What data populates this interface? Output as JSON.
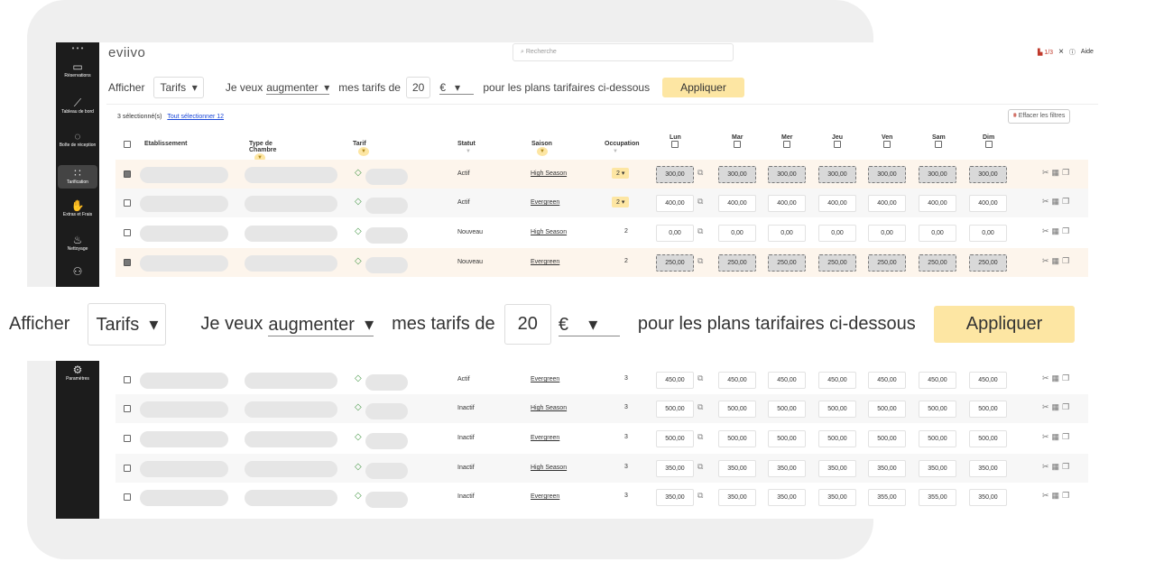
{
  "app": {
    "logo": "eviivo",
    "search_placeholder": "Recherche",
    "property_count": "1/3",
    "close": "×",
    "help": "Aide"
  },
  "colors": {
    "accent": "#fde6a3",
    "sidebar": "#1c1c1c",
    "selected_row": "#fdf5ec",
    "link": "#1a47d8"
  },
  "sidebar": {
    "items": [
      {
        "icon": "bed-icon",
        "label": "Réservations"
      },
      {
        "icon": "chart-icon",
        "label": "Tableau de bord"
      },
      {
        "icon": "chat-icon",
        "label": "Boîte de réception"
      },
      {
        "icon": "calculator-icon",
        "label": "Tarification",
        "active": true
      },
      {
        "icon": "hand-coins-icon",
        "label": "Extras et Frais"
      },
      {
        "icon": "cleaning-icon",
        "label": "Nettoyage"
      },
      {
        "icon": "users-icon",
        "label": ""
      },
      {
        "icon": "gear-icon",
        "label": "Paramètres"
      }
    ]
  },
  "toolbar": {
    "show_label": "Afficher",
    "show_value": "Tarifs",
    "want_label": "Je veux",
    "action_value": "augmenter",
    "rates_label": "mes tarifs de",
    "amount": "20",
    "unit": "€",
    "suffix": "pour les plans tarifaires ci-dessous",
    "apply": "Appliquer"
  },
  "selection": {
    "count": "3 sélectionné(s)",
    "select_all": "Tout sélectionner 12",
    "clear_filters": "Effacer les filtres"
  },
  "columns": {
    "establishment": "Etablissement",
    "room_type": "Type de Chambre",
    "rate": "Tarif",
    "status": "Statut",
    "season": "Saison",
    "occupancy": "Occupation",
    "days": [
      "Lun",
      "Mar",
      "Mer",
      "Jeu",
      "Ven",
      "Sam",
      "Dim"
    ]
  },
  "rows_top": [
    {
      "checked": true,
      "status": "Actif",
      "season": "High Season",
      "occ": "2",
      "occ_dropdown": true,
      "prices": [
        "300,00",
        "300,00",
        "300,00",
        "300,00",
        "300,00",
        "300,00",
        "300,00"
      ]
    },
    {
      "checked": false,
      "status": "Actif",
      "season": "Evergreen",
      "occ": "2",
      "occ_dropdown": true,
      "prices": [
        "400,00",
        "400,00",
        "400,00",
        "400,00",
        "400,00",
        "400,00",
        "400,00"
      ]
    },
    {
      "checked": false,
      "status": "Nouveau",
      "season": "High Season",
      "occ": "2",
      "prices": [
        "0,00",
        "0,00",
        "0,00",
        "0,00",
        "0,00",
        "0,00",
        "0,00"
      ]
    },
    {
      "checked": true,
      "status": "Nouveau",
      "season": "Evergreen",
      "occ": "2",
      "prices": [
        "250,00",
        "250,00",
        "250,00",
        "250,00",
        "250,00",
        "250,00",
        "250,00"
      ]
    }
  ],
  "rows_bottom": [
    {
      "checked": false,
      "status": "Actif",
      "season": "Evergreen",
      "occ": "3",
      "prices": [
        "450,00",
        "450,00",
        "450,00",
        "450,00",
        "450,00",
        "450,00",
        "450,00"
      ]
    },
    {
      "checked": false,
      "status": "Inactif",
      "season": "High Season",
      "occ": "3",
      "prices": [
        "500,00",
        "500,00",
        "500,00",
        "500,00",
        "500,00",
        "500,00",
        "500,00"
      ]
    },
    {
      "checked": false,
      "status": "Inactif",
      "season": "Evergreen",
      "occ": "3",
      "prices": [
        "500,00",
        "500,00",
        "500,00",
        "500,00",
        "500,00",
        "500,00",
        "500,00"
      ]
    },
    {
      "checked": false,
      "status": "Inactif",
      "season": "High Season",
      "occ": "3",
      "prices": [
        "350,00",
        "350,00",
        "350,00",
        "350,00",
        "350,00",
        "350,00",
        "350,00"
      ]
    },
    {
      "checked": false,
      "status": "Inactif",
      "season": "Evergreen",
      "occ": "3",
      "prices": [
        "350,00",
        "350,00",
        "350,00",
        "350,00",
        "355,00",
        "355,00",
        "350,00"
      ]
    }
  ]
}
